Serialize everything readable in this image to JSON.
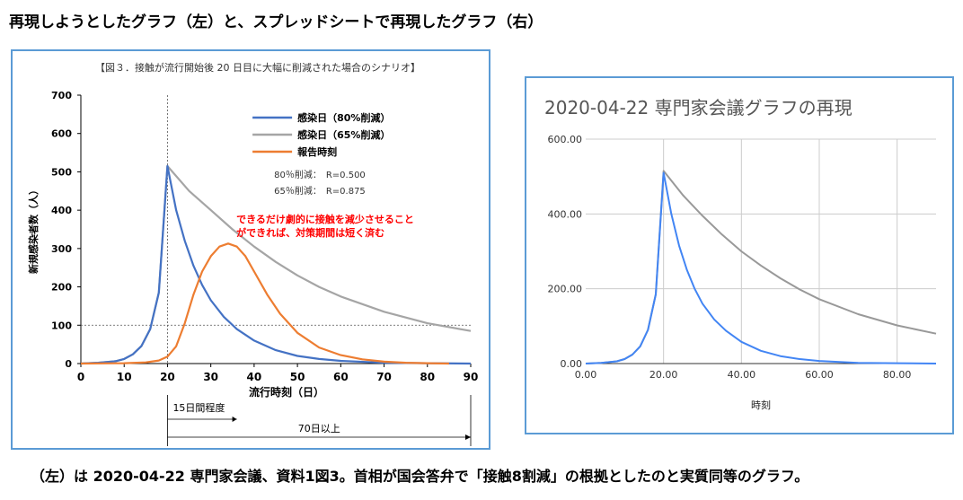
{
  "page": {
    "heading": "再現しようとしたグラフ（左）と、スプレッドシートで再現したグラフ（右）",
    "caption": "（左）は 2020-04-22 専門家会議、資料1図3。首相が国会答弁で「接触8割減」の根拠としたのと実質同等のグラフ。"
  },
  "chart_data": [
    {
      "type": "line",
      "title": "【図３．接触が流行開始後 20 日目に大幅に削減された場合のシナリオ】",
      "xlabel": "流行時刻（日）",
      "ylabel": "新規感染者数（人）",
      "xlim": [
        0,
        90
      ],
      "ylim": [
        0,
        700
      ],
      "xticks": [
        "0",
        "10",
        "20",
        "30",
        "40",
        "50",
        "60",
        "70",
        "80",
        "90"
      ],
      "yticks": [
        "0",
        "100",
        "200",
        "300",
        "400",
        "500",
        "600",
        "700"
      ],
      "series": [
        {
          "name": "感染日（80%削減）",
          "color": "#4472c4",
          "x": [
            0,
            4,
            8,
            10,
            12,
            14,
            16,
            18,
            20,
            22,
            24,
            26,
            28,
            30,
            33,
            36,
            40,
            45,
            50,
            55,
            60,
            70,
            80,
            90
          ],
          "y": [
            0,
            2,
            6,
            12,
            24,
            46,
            90,
            185,
            515,
            400,
            320,
            255,
            205,
            165,
            122,
            90,
            60,
            35,
            20,
            12,
            7,
            2,
            1,
            0
          ]
        },
        {
          "name": "感染日（65%削減）",
          "color": "#a5a5a5",
          "x": [
            0,
            4,
            8,
            10,
            12,
            14,
            16,
            18,
            20,
            25,
            30,
            35,
            40,
            45,
            50,
            55,
            60,
            70,
            80,
            90
          ],
          "y": [
            0,
            2,
            6,
            12,
            24,
            46,
            90,
            185,
            515,
            450,
            400,
            350,
            305,
            265,
            230,
            200,
            175,
            135,
            105,
            85
          ]
        },
        {
          "name": "報告時刻",
          "color": "#ed7d31",
          "x": [
            0,
            10,
            15,
            18,
            20,
            22,
            24,
            26,
            28,
            30,
            32,
            34,
            36,
            38,
            40,
            43,
            46,
            50,
            55,
            60,
            65,
            70,
            75,
            80,
            85
          ],
          "y": [
            0,
            1,
            3,
            8,
            18,
            45,
            105,
            180,
            240,
            280,
            305,
            313,
            305,
            280,
            240,
            180,
            130,
            80,
            42,
            22,
            11,
            5,
            2,
            1,
            0
          ]
        }
      ],
      "legend_position": "top-right",
      "annotations": {
        "r80": "80％削減：　R=0.500",
        "r65": "65％削減：　R=0.875",
        "note_line1": "できるだけ劇的に接触を減少させること",
        "note_line2": "ができれば、対策期間は短く済む",
        "span15": "15日間程度",
        "span70": "70日以上"
      },
      "reference_lines": {
        "x": 20,
        "y": 100
      }
    },
    {
      "type": "line",
      "title": "2020-04-22 専門家会議グラフの再現",
      "xlabel": "時刻",
      "ylabel": "",
      "xlim": [
        0,
        90
      ],
      "ylim": [
        0,
        600
      ],
      "xticks": [
        "0.00",
        "20.00",
        "40.00",
        "60.00",
        "80.00"
      ],
      "yticks": [
        "0.00",
        "200.00",
        "400.00",
        "600.00"
      ],
      "grid": true,
      "series": [
        {
          "color": "#4285f4",
          "x": [
            0,
            4,
            8,
            10,
            12,
            14,
            16,
            18,
            20,
            22,
            24,
            26,
            28,
            30,
            33,
            36,
            40,
            45,
            50,
            55,
            60,
            70,
            80,
            90
          ],
          "y": [
            0,
            2,
            6,
            12,
            24,
            46,
            90,
            185,
            510,
            400,
            315,
            250,
            200,
            160,
            118,
            88,
            58,
            34,
            20,
            12,
            7,
            2,
            1,
            0
          ]
        },
        {
          "color": "#999999",
          "x": [
            0,
            4,
            8,
            10,
            12,
            14,
            16,
            18,
            20,
            25,
            30,
            35,
            40,
            45,
            50,
            55,
            60,
            70,
            80,
            90
          ],
          "y": [
            0,
            2,
            6,
            12,
            24,
            46,
            90,
            185,
            515,
            450,
            395,
            345,
            300,
            262,
            228,
            198,
            172,
            132,
            102,
            80
          ]
        }
      ]
    }
  ]
}
